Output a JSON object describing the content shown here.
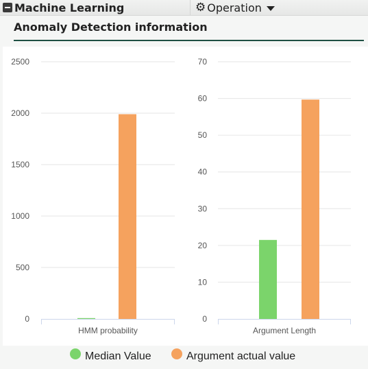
{
  "header": {
    "title": "Machine Learning",
    "operation_label": "Operation",
    "icons": {
      "collapse": "minus-square-icon",
      "gear": "gear-icon",
      "caret": "caret-down-icon"
    }
  },
  "section": {
    "title": "Anomaly Detection information"
  },
  "colors": {
    "median": "#7bd46b",
    "actual": "#f5a25e",
    "grid": "#e6e6e6",
    "axis": "#ccd6eb",
    "text": "#555555"
  },
  "legend": [
    {
      "label": "Median Value",
      "color": "#7bd46b"
    },
    {
      "label": "Argument actual value",
      "color": "#f5a25e"
    }
  ],
  "chart_data": [
    {
      "type": "bar",
      "categories": [
        "HMM probability"
      ],
      "series": [
        {
          "name": "Median Value",
          "values": [
            8
          ]
        },
        {
          "name": "Argument actual value",
          "values": [
            1990
          ]
        }
      ],
      "ylim": [
        0,
        2500
      ],
      "yticks": [
        0,
        500,
        1000,
        1500,
        2000,
        2500
      ],
      "grid": true
    },
    {
      "type": "bar",
      "categories": [
        "Argument Length"
      ],
      "series": [
        {
          "name": "Median Value",
          "values": [
            21.5
          ]
        },
        {
          "name": "Argument actual value",
          "values": [
            59.7
          ]
        }
      ],
      "ylim": [
        0,
        70
      ],
      "yticks": [
        0,
        10,
        20,
        30,
        40,
        50,
        60,
        70
      ],
      "grid": true
    }
  ]
}
